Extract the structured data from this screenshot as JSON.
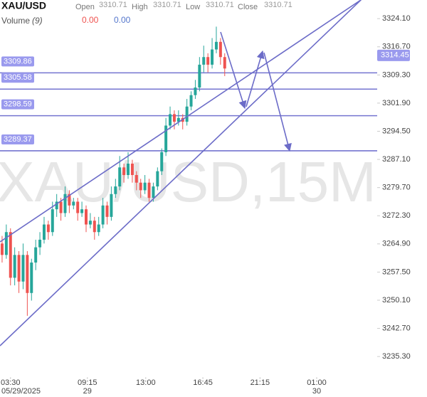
{
  "header": {
    "symbol": "XAU/USD",
    "fields": [
      {
        "label": "Open",
        "value": "3310.71"
      },
      {
        "label": "High",
        "value": "3310.71"
      },
      {
        "label": "Low",
        "value": "3310.71"
      },
      {
        "label": "Close",
        "value": "3310.71"
      }
    ],
    "volume": "Volume",
    "volume_param": "(9)",
    "volume_values": [
      "0.00",
      "0.00"
    ]
  },
  "chart_data": {
    "type": "candlestick",
    "watermark": "XAU/USD,15M",
    "up_color": "#26a69a",
    "down_color": "#ef5350",
    "line_color": "#7474d0",
    "x": [
      0,
      1,
      2,
      3,
      4,
      5,
      6,
      7,
      8,
      9,
      10,
      11,
      12,
      13,
      14,
      15,
      16,
      17,
      18,
      19,
      20,
      21,
      22,
      23,
      24,
      25,
      26,
      27,
      28,
      29,
      30,
      31,
      32,
      33,
      34,
      35,
      36,
      37,
      38,
      39,
      40,
      41,
      42,
      43,
      44,
      45,
      46,
      47,
      48,
      49,
      50,
      51,
      52,
      53
    ],
    "open": [
      3265,
      3262,
      3268,
      3256,
      3262,
      3255,
      3262,
      3252,
      3260,
      3264,
      3266,
      3270,
      3268,
      3274,
      3276,
      3273,
      3278,
      3275,
      3276,
      3273,
      3274,
      3270,
      3271,
      3268,
      3270,
      3275,
      3272,
      3278,
      3280,
      3285,
      3283,
      3286,
      3283,
      3281,
      3279,
      3281,
      3277,
      3280,
      3284,
      3289,
      3296,
      3299,
      3297,
      3298,
      3297,
      3301,
      3304,
      3306,
      3312,
      3314,
      3312,
      3316,
      3318,
      3314
    ],
    "high": [
      3267,
      3270,
      3269,
      3264,
      3263,
      3265,
      3263,
      3261,
      3266,
      3268,
      3272,
      3271,
      3276,
      3278,
      3277,
      3280,
      3279,
      3277,
      3277,
      3276,
      3275,
      3273,
      3272,
      3272,
      3277,
      3276,
      3280,
      3282,
      3288,
      3286,
      3289,
      3287,
      3284,
      3282,
      3283,
      3282,
      3281,
      3285,
      3290,
      3298,
      3301,
      3300,
      3300,
      3299,
      3303,
      3305,
      3308,
      3314,
      3317,
      3315,
      3319,
      3322,
      3319,
      3315
    ],
    "low": [
      3260,
      3261,
      3254,
      3254,
      3252,
      3253,
      3246,
      3250,
      3258,
      3262,
      3265,
      3266,
      3267,
      3272,
      3271,
      3272,
      3273,
      3274,
      3271,
      3272,
      3268,
      3269,
      3266,
      3267,
      3269,
      3270,
      3271,
      3277,
      3279,
      3281,
      3282,
      3281,
      3279,
      3277,
      3278,
      3276,
      3276,
      3279,
      3283,
      3288,
      3295,
      3295,
      3296,
      3295,
      3296,
      3300,
      3303,
      3305,
      3310,
      3310,
      3311,
      3315,
      3312,
      3309
    ],
    "close": [
      3262,
      3268,
      3256,
      3262,
      3255,
      3262,
      3252,
      3260,
      3264,
      3266,
      3270,
      3268,
      3274,
      3276,
      3273,
      3278,
      3275,
      3276,
      3273,
      3274,
      3270,
      3271,
      3268,
      3270,
      3275,
      3272,
      3278,
      3280,
      3285,
      3283,
      3286,
      3283,
      3281,
      3279,
      3281,
      3277,
      3280,
      3284,
      3289,
      3296,
      3299,
      3297,
      3298,
      3297,
      3301,
      3304,
      3306,
      3312,
      3314,
      3312,
      3316,
      3318,
      3314,
      3311
    ],
    "xlim": [
      -0.5,
      89.3
    ],
    "ylim": [
      3229.9,
      3329.0
    ],
    "yticks": [
      {
        "value": 3324.1,
        "label": "3324.10"
      },
      {
        "value": 3316.7,
        "label": "3316.70"
      },
      {
        "value": 3309.3,
        "label": "3309.30"
      },
      {
        "value": 3301.9,
        "label": "3301.90"
      },
      {
        "value": 3294.5,
        "label": "3294.50"
      },
      {
        "value": 3287.1,
        "label": "3287.10"
      },
      {
        "value": 3279.7,
        "label": "3279.70"
      },
      {
        "value": 3272.3,
        "label": "3272.30"
      },
      {
        "value": 3264.9,
        "label": "3264.90"
      },
      {
        "value": 3257.5,
        "label": "3257.50"
      },
      {
        "value": 3250.1,
        "label": "3250.10"
      },
      {
        "value": 3242.7,
        "label": "3242.70"
      },
      {
        "value": 3235.3,
        "label": "3235.30"
      }
    ],
    "xticks": [
      {
        "value": 2,
        "label": "03:30"
      },
      {
        "value": 20.3,
        "label": "09:15"
      },
      {
        "value": 34.2,
        "label": "13:00"
      },
      {
        "value": 47.8,
        "label": "16:45"
      },
      {
        "value": 61.4,
        "label": "21:15"
      },
      {
        "value": 74.9,
        "label": "01:00"
      }
    ],
    "xticks2": [
      {
        "value": 4.5,
        "label": "05/29/2025"
      },
      {
        "value": 20.3,
        "label": "29"
      },
      {
        "value": 74.9,
        "label": "30"
      }
    ],
    "levels": [
      3309.86,
      3305.58,
      3298.59,
      3289.37
    ],
    "last_price": 3314.45
  }
}
